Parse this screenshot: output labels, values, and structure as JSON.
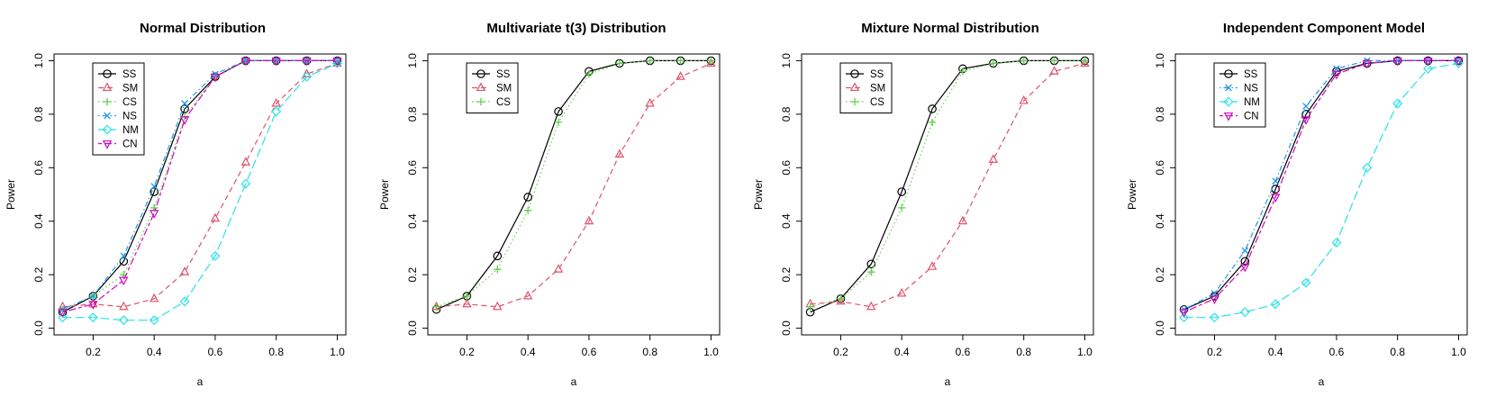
{
  "chart_data": [
    {
      "type": "line",
      "title": "Normal Distribution",
      "xlabel": "a",
      "ylabel": "Power",
      "xlim": [
        0.1,
        1.0
      ],
      "ylim": [
        0.0,
        1.0
      ],
      "x": [
        0.1,
        0.2,
        0.3,
        0.4,
        0.5,
        0.6,
        0.7,
        0.8,
        0.9,
        1.0
      ],
      "xticks": [
        "0.2",
        "0.4",
        "0.6",
        "0.8",
        "1.0"
      ],
      "yticks": [
        "0.0",
        "0.2",
        "0.4",
        "0.6",
        "0.8",
        "1.0"
      ],
      "legend_position": "top-left",
      "series": [
        {
          "name": "SS",
          "color": "#000000",
          "marker": "circle",
          "dash": "solid",
          "values": [
            0.06,
            0.12,
            0.25,
            0.51,
            0.82,
            0.94,
            1.0,
            1.0,
            1.0,
            1.0
          ]
        },
        {
          "name": "SM",
          "color": "#df536b",
          "marker": "triangle",
          "dash": "dashed",
          "values": [
            0.08,
            0.09,
            0.08,
            0.11,
            0.21,
            0.41,
            0.62,
            0.84,
            0.95,
            0.99
          ]
        },
        {
          "name": "CS",
          "color": "#61d04f",
          "marker": "plus",
          "dash": "dotted",
          "values": [
            0.07,
            0.12,
            0.2,
            0.45,
            0.79,
            0.94,
            1.0,
            1.0,
            1.0,
            1.0
          ]
        },
        {
          "name": "NS",
          "color": "#2297e6",
          "marker": "cross",
          "dash": "dotdash",
          "values": [
            0.07,
            0.12,
            0.27,
            0.53,
            0.84,
            0.95,
            1.0,
            1.0,
            1.0,
            1.0
          ]
        },
        {
          "name": "NM",
          "color": "#28e2e5",
          "marker": "diamond",
          "dash": "longdash",
          "values": [
            0.04,
            0.04,
            0.03,
            0.03,
            0.1,
            0.27,
            0.54,
            0.81,
            0.94,
            0.99
          ]
        },
        {
          "name": "CN",
          "color": "#cd0bbc",
          "marker": "triangle-down",
          "dash": "twodash",
          "values": [
            0.06,
            0.09,
            0.18,
            0.43,
            0.78,
            0.94,
            1.0,
            1.0,
            1.0,
            1.0
          ]
        }
      ]
    },
    {
      "type": "line",
      "title": "Multivariate t(3) Distribution",
      "xlabel": "a",
      "ylabel": "Power",
      "xlim": [
        0.1,
        1.0
      ],
      "ylim": [
        0.0,
        1.0
      ],
      "x": [
        0.1,
        0.2,
        0.3,
        0.4,
        0.5,
        0.6,
        0.7,
        0.8,
        0.9,
        1.0
      ],
      "xticks": [
        "0.2",
        "0.4",
        "0.6",
        "0.8",
        "1.0"
      ],
      "yticks": [
        "0.0",
        "0.2",
        "0.4",
        "0.6",
        "0.8",
        "1.0"
      ],
      "legend_position": "top-left",
      "series": [
        {
          "name": "SS",
          "color": "#000000",
          "marker": "circle",
          "dash": "solid",
          "values": [
            0.07,
            0.12,
            0.27,
            0.49,
            0.81,
            0.96,
            0.99,
            1.0,
            1.0,
            1.0
          ]
        },
        {
          "name": "SM",
          "color": "#df536b",
          "marker": "triangle",
          "dash": "dashed",
          "values": [
            0.08,
            0.09,
            0.08,
            0.12,
            0.22,
            0.4,
            0.65,
            0.84,
            0.94,
            0.99
          ]
        },
        {
          "name": "CS",
          "color": "#61d04f",
          "marker": "plus",
          "dash": "dotted",
          "values": [
            0.08,
            0.12,
            0.22,
            0.44,
            0.77,
            0.95,
            0.99,
            1.0,
            1.0,
            1.0
          ]
        }
      ]
    },
    {
      "type": "line",
      "title": "Mixture Normal Distribution",
      "xlabel": "a",
      "ylabel": "Power",
      "xlim": [
        0.1,
        1.0
      ],
      "ylim": [
        0.0,
        1.0
      ],
      "x": [
        0.1,
        0.2,
        0.3,
        0.4,
        0.5,
        0.6,
        0.7,
        0.8,
        0.9,
        1.0
      ],
      "xticks": [
        "0.2",
        "0.4",
        "0.6",
        "0.8",
        "1.0"
      ],
      "yticks": [
        "0.0",
        "0.2",
        "0.4",
        "0.6",
        "0.8",
        "1.0"
      ],
      "legend_position": "top-left",
      "series": [
        {
          "name": "SS",
          "color": "#000000",
          "marker": "circle",
          "dash": "solid",
          "values": [
            0.06,
            0.11,
            0.24,
            0.51,
            0.82,
            0.97,
            0.99,
            1.0,
            1.0,
            1.0
          ]
        },
        {
          "name": "SM",
          "color": "#df536b",
          "marker": "triangle",
          "dash": "dashed",
          "values": [
            0.09,
            0.1,
            0.08,
            0.13,
            0.23,
            0.4,
            0.63,
            0.85,
            0.96,
            0.99
          ]
        },
        {
          "name": "CS",
          "color": "#61d04f",
          "marker": "plus",
          "dash": "dotted",
          "values": [
            0.08,
            0.11,
            0.21,
            0.45,
            0.77,
            0.96,
            0.99,
            1.0,
            1.0,
            1.0
          ]
        }
      ]
    },
    {
      "type": "line",
      "title": "Independent Component Model",
      "xlabel": "a",
      "ylabel": "Power",
      "xlim": [
        0.1,
        1.0
      ],
      "ylim": [
        0.0,
        1.0
      ],
      "x": [
        0.1,
        0.2,
        0.3,
        0.4,
        0.5,
        0.6,
        0.7,
        0.8,
        0.9,
        1.0
      ],
      "xticks": [
        "0.2",
        "0.4",
        "0.6",
        "0.8",
        "1.0"
      ],
      "yticks": [
        "0.0",
        "0.2",
        "0.4",
        "0.6",
        "0.8",
        "1.0"
      ],
      "legend_position": "top-left",
      "series": [
        {
          "name": "SS",
          "color": "#000000",
          "marker": "circle",
          "dash": "solid",
          "values": [
            0.07,
            0.12,
            0.25,
            0.52,
            0.8,
            0.96,
            0.99,
            1.0,
            1.0,
            1.0
          ]
        },
        {
          "name": "NS",
          "color": "#2297e6",
          "marker": "cross",
          "dash": "dotdash",
          "values": [
            0.07,
            0.13,
            0.29,
            0.55,
            0.83,
            0.97,
            1.0,
            1.0,
            1.0,
            1.0
          ]
        },
        {
          "name": "NM",
          "color": "#28e2e5",
          "marker": "diamond",
          "dash": "longdash",
          "values": [
            0.04,
            0.04,
            0.06,
            0.09,
            0.17,
            0.32,
            0.6,
            0.84,
            0.97,
            0.99
          ]
        },
        {
          "name": "CN",
          "color": "#cd0bbc",
          "marker": "triangle-down",
          "dash": "twodash",
          "values": [
            0.06,
            0.11,
            0.23,
            0.49,
            0.78,
            0.95,
            0.99,
            1.0,
            1.0,
            1.0
          ]
        }
      ]
    }
  ]
}
